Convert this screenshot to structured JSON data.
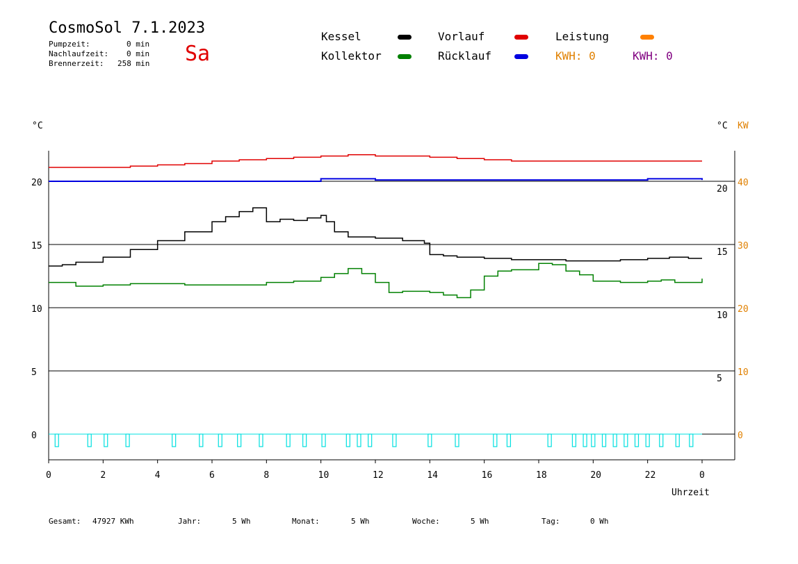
{
  "header": {
    "title": "CosmoSol 7.1.2023",
    "day": "Sa",
    "stats": [
      {
        "label": "Pumpzeit:",
        "value": "0 min"
      },
      {
        "label": "Nachlaufzeit:",
        "value": "0 min"
      },
      {
        "label": "Brennerzeit:",
        "value": "258 min"
      }
    ]
  },
  "legend": {
    "kessel": "Kessel",
    "vorlauf": "Vorlauf",
    "leistung": "Leistung",
    "kollektor": "Kollektor",
    "ruecklauf": "Rücklauf",
    "kwh_orange": "KWH: 0",
    "kwh_purple": "KWH: 0"
  },
  "axes": {
    "left_unit": "°C",
    "right_unit_c": "°C",
    "right_unit_kw": "KW",
    "xlabel": "Uhrzeit"
  },
  "footer": {
    "gesamt_label": "Gesamt:",
    "gesamt_value": "47927 KWh",
    "jahr_label": "Jahr:",
    "jahr_value": "5 Wh",
    "monat_label": "Monat:",
    "monat_value": "5 Wh",
    "woche_label": "Woche:",
    "woche_value": "5 Wh",
    "tag_label": "Tag:",
    "tag_value": "0 Wh"
  },
  "colors": {
    "kessel": "#000000",
    "vorlauf": "#e00000",
    "leistung": "#ff8000",
    "kollektor": "#008000",
    "ruecklauf": "#0000e0",
    "kwh_orange": "#e08000",
    "kwh_purple": "#800080",
    "pump": "#00e0e0"
  },
  "chart_data": {
    "type": "line",
    "xlabel": "Uhrzeit",
    "x_ticks": [
      "0",
      "2",
      "4",
      "6",
      "8",
      "10",
      "12",
      "14",
      "16",
      "18",
      "20",
      "22",
      "0"
    ],
    "xlim": [
      0,
      24
    ],
    "ylim": [
      -1.5,
      23
    ],
    "y_ticks_left": [
      "20",
      "15",
      "10",
      "5",
      "0"
    ],
    "y_ticks_right_c": [
      "20",
      "15",
      "10",
      "5"
    ],
    "y_ticks_right_kw": [
      "40",
      "30",
      "20",
      "10",
      "0"
    ],
    "grid": "horizontal",
    "series": [
      {
        "name": "Vorlauf",
        "color": "#e00000",
        "x": [
          0,
          1,
          2,
          3,
          4,
          5,
          6,
          7,
          8,
          9,
          10,
          11,
          12,
          13,
          14,
          15,
          16,
          17,
          18,
          19,
          20,
          21,
          22,
          23,
          24
        ],
        "y": [
          21.1,
          21.1,
          21.1,
          21.2,
          21.3,
          21.4,
          21.6,
          21.7,
          21.8,
          21.9,
          22,
          22.1,
          22,
          22,
          21.9,
          21.8,
          21.7,
          21.6,
          21.6,
          21.6,
          21.6,
          21.6,
          21.6,
          21.6,
          21.6
        ]
      },
      {
        "name": "Rücklauf",
        "color": "#0000e0",
        "x": [
          0,
          2,
          4,
          6,
          8,
          10,
          12,
          14,
          16,
          18,
          20,
          22,
          24
        ],
        "y": [
          20.0,
          20.0,
          20.0,
          20.0,
          20.0,
          20.2,
          20.1,
          20.1,
          20.1,
          20.1,
          20.1,
          20.2,
          20.1
        ]
      },
      {
        "name": "Kessel",
        "color": "#000000",
        "x": [
          0,
          0.5,
          1,
          2,
          3,
          4,
          5,
          6,
          6.5,
          7,
          7.5,
          7.8,
          8,
          8.5,
          9,
          9.5,
          10,
          10.2,
          10.5,
          11,
          12,
          13,
          13.8,
          14,
          14.5,
          15,
          16,
          17,
          18,
          19,
          20,
          21,
          22,
          22.8,
          23.5,
          24
        ],
        "y": [
          13.3,
          13.4,
          13.6,
          14,
          14.6,
          15.3,
          16,
          16.8,
          17.2,
          17.6,
          17.9,
          17.9,
          16.8,
          17,
          16.9,
          17.1,
          17.3,
          16.8,
          16,
          15.6,
          15.5,
          15.3,
          15.1,
          14.2,
          14.1,
          14,
          13.9,
          13.8,
          13.8,
          13.7,
          13.7,
          13.8,
          13.9,
          14,
          13.9,
          13.9
        ]
      },
      {
        "name": "Kollektor",
        "color": "#008000",
        "x": [
          0,
          1,
          2,
          3,
          4,
          5,
          6,
          7,
          8,
          9,
          10,
          10.5,
          11,
          11.5,
          12,
          12.5,
          13,
          14,
          14.5,
          15,
          15.5,
          16,
          16.5,
          17,
          18,
          18.5,
          19,
          19.5,
          20,
          21,
          22,
          22.5,
          23,
          24
        ],
        "y": [
          12,
          11.7,
          11.8,
          11.9,
          11.9,
          11.8,
          11.8,
          11.8,
          12,
          12.1,
          12.4,
          12.7,
          13.1,
          12.7,
          12,
          11.2,
          11.3,
          11.2,
          11,
          10.8,
          11.4,
          12.5,
          12.9,
          13,
          13.5,
          13.4,
          12.9,
          12.6,
          12.1,
          12.0,
          12.1,
          12.2,
          12.0,
          12.3
        ]
      },
      {
        "name": "Leistung",
        "color": "#ff8000",
        "x": [
          0,
          24
        ],
        "y": [
          0,
          0
        ]
      }
    ],
    "pump_pulses_hours": [
      0.3,
      1.5,
      2.1,
      2.9,
      4.6,
      5.6,
      6.3,
      7.0,
      7.8,
      8.8,
      9.4,
      10.1,
      11.0,
      11.4,
      11.8,
      12.7,
      14.0,
      15.0,
      16.4,
      16.9,
      18.4,
      19.3,
      19.7,
      20.0,
      20.4,
      20.8,
      21.2,
      21.6,
      22.0,
      22.5,
      23.1,
      23.6
    ]
  }
}
